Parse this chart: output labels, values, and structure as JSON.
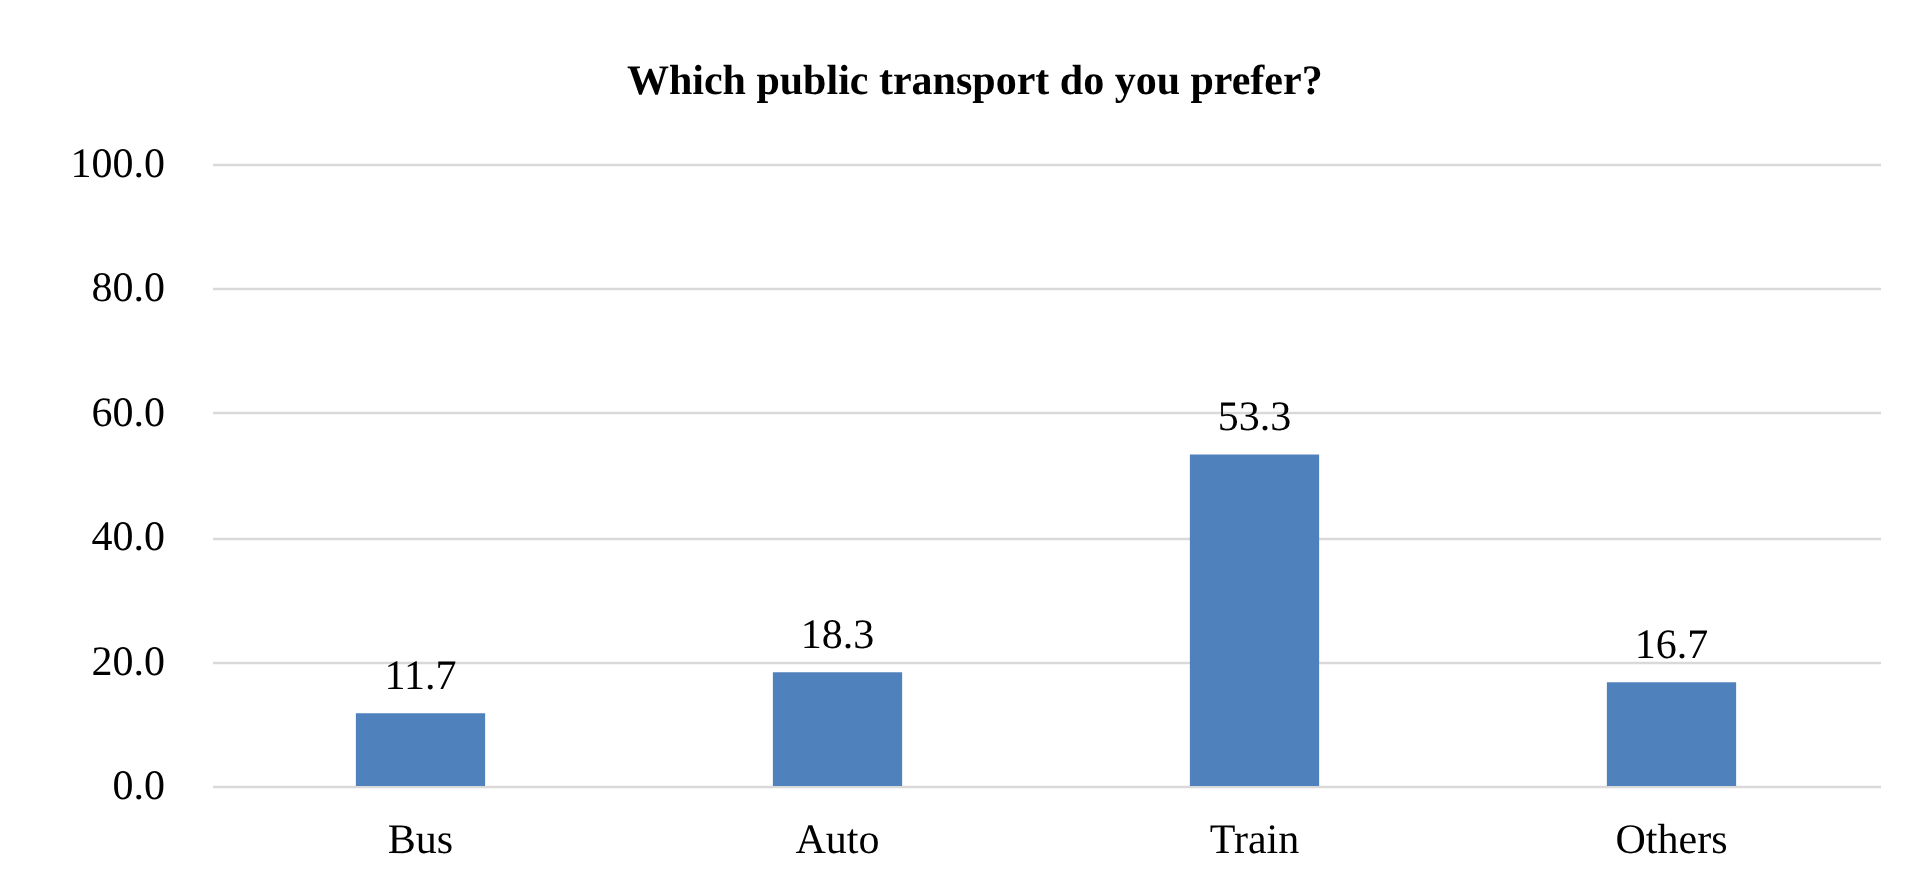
{
  "chart_data": {
    "type": "bar",
    "title": "Which public transport do you prefer?",
    "categories": [
      "Bus",
      "Auto",
      "Train",
      "Others"
    ],
    "values": [
      11.7,
      18.3,
      53.3,
      16.7
    ],
    "color": "#4f81bd",
    "ylim": [
      0,
      100
    ],
    "yticks": [
      {
        "value": 0,
        "label": "0.0"
      },
      {
        "value": 20,
        "label": "20.0"
      },
      {
        "value": 40,
        "label": "40.0"
      },
      {
        "value": 60,
        "label": "60.0"
      },
      {
        "value": 80,
        "label": "80.0"
      },
      {
        "value": 100,
        "label": "100.0"
      }
    ],
    "grid": "y",
    "data_labels": true
  }
}
